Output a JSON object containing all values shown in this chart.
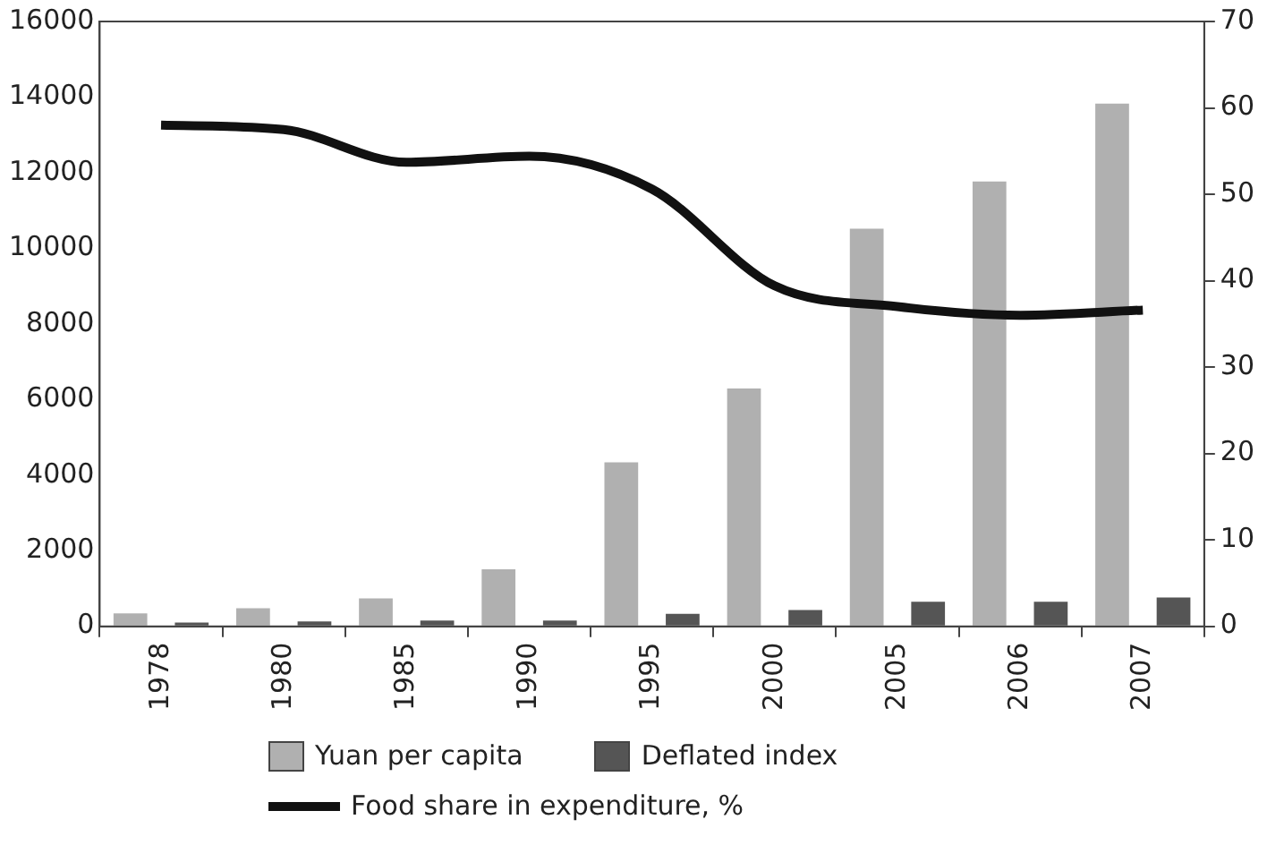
{
  "chart_data": {
    "type": "bar",
    "categories": [
      "1978",
      "1980",
      "1985",
      "1990",
      "1995",
      "2000",
      "2005",
      "2006",
      "2007"
    ],
    "series": [
      {
        "name": "Yuan per capita",
        "color": "#b0b0b0",
        "values": [
          340,
          480,
          740,
          1510,
          4340,
          6290,
          10520,
          11770,
          13830
        ]
      },
      {
        "name": "Deflated index",
        "color": "#555555",
        "values": [
          100,
          130,
          150,
          150,
          330,
          430,
          650,
          650,
          760
        ]
      },
      {
        "name": "Food share in expenditure, %",
        "type": "line",
        "axis": "y2",
        "color": "#111111",
        "values": [
          58,
          57.5,
          53.7,
          54.4,
          50.6,
          39.4,
          37,
          36,
          36.6
        ]
      }
    ],
    "ylim": [
      0,
      16000
    ],
    "yticks": [
      0,
      2000,
      4000,
      6000,
      8000,
      10000,
      12000,
      14000,
      16000
    ],
    "y2lim": [
      0,
      70
    ],
    "y2ticks": [
      0,
      10,
      20,
      30,
      40,
      50,
      60,
      70
    ],
    "grid": false,
    "legend": "bottom",
    "marker": "none",
    "line_style": "solid"
  }
}
